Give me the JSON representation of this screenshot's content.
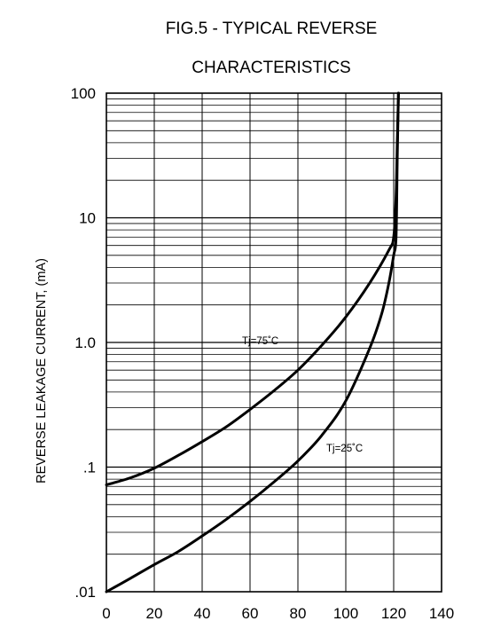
{
  "chart_data": {
    "type": "line",
    "title": "FIG.5 - TYPICAL REVERSE",
    "subtitle": "CHARACTERISTICS",
    "xlabel": "",
    "ylabel": "REVERSE LEAKAGE CURRENT, (mA)",
    "xlim": [
      0,
      140
    ],
    "ylim": [
      0.01,
      100
    ],
    "yscale": "log",
    "x_ticks": [
      "0",
      "20",
      "40",
      "60",
      "80",
      "100",
      "120",
      "140"
    ],
    "x_tick_values": [
      0,
      20,
      40,
      60,
      80,
      100,
      120,
      140
    ],
    "y_ticks": [
      ".01",
      ".1",
      "1.0",
      "10",
      "100"
    ],
    "y_tick_values": [
      0.01,
      0.1,
      1,
      10,
      100
    ],
    "grid": true,
    "series": [
      {
        "name": "Tj=75˚C",
        "x": [
          0,
          10,
          20,
          30,
          40,
          50,
          60,
          70,
          80,
          90,
          100,
          110,
          118,
          120,
          121,
          121.5,
          122
        ],
        "y": [
          0.072,
          0.082,
          0.098,
          0.124,
          0.16,
          0.21,
          0.29,
          0.41,
          0.6,
          0.95,
          1.6,
          3.0,
          5.5,
          7.0,
          15,
          40,
          100
        ]
      },
      {
        "name": "Tj=25˚C",
        "x": [
          0,
          10,
          20,
          30,
          40,
          50,
          60,
          70,
          80,
          90,
          100,
          110,
          115,
          118,
          120,
          121,
          121.5,
          122
        ],
        "y": [
          0.01,
          0.0128,
          0.0165,
          0.021,
          0.028,
          0.038,
          0.053,
          0.076,
          0.112,
          0.18,
          0.34,
          0.9,
          1.7,
          3.0,
          5.0,
          7.0,
          30,
          100
        ]
      }
    ],
    "annotations": [
      "Tj=75˚C",
      "Tj=25˚C"
    ]
  }
}
